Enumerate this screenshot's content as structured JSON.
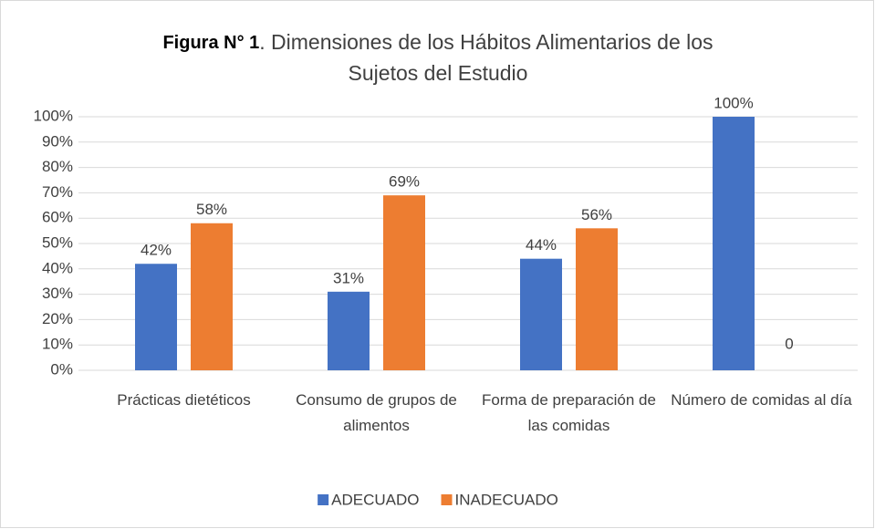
{
  "chart_data": {
    "type": "bar",
    "title": [
      "Figura N° 1",
      ". Dimensiones de los Hábitos Alimentarios de los",
      "Sujetos del Estudio"
    ],
    "categories": [
      "Prácticas dietéticos",
      "Consumo de grupos de alimentos",
      "Forma de preparación de las comidas",
      "Número de comidas al día"
    ],
    "series": [
      {
        "name": "ADECUADO",
        "color": "#4472c4",
        "values": [
          42,
          31,
          44,
          100
        ],
        "value_labels": [
          "42%",
          "31%",
          "44%",
          "100%"
        ]
      },
      {
        "name": "INADECUADO",
        "color": "#ed7d31",
        "values": [
          58,
          69,
          56,
          0
        ],
        "value_labels": [
          "58%",
          "69%",
          "56%",
          "0"
        ]
      }
    ],
    "ylim": [
      0,
      100
    ],
    "yticks": [
      {
        "value": 0,
        "label": "0%"
      },
      {
        "value": 10,
        "label": "10%"
      },
      {
        "value": 20,
        "label": "20%"
      },
      {
        "value": 30,
        "label": "30%"
      },
      {
        "value": 40,
        "label": "40%"
      },
      {
        "value": 50,
        "label": "50%"
      },
      {
        "value": 60,
        "label": "60%"
      },
      {
        "value": 70,
        "label": "70%"
      },
      {
        "value": 80,
        "label": "80%"
      },
      {
        "value": 90,
        "label": "90%"
      },
      {
        "value": 100,
        "label": "100%"
      }
    ],
    "grid": true,
    "legend": "bottom"
  }
}
